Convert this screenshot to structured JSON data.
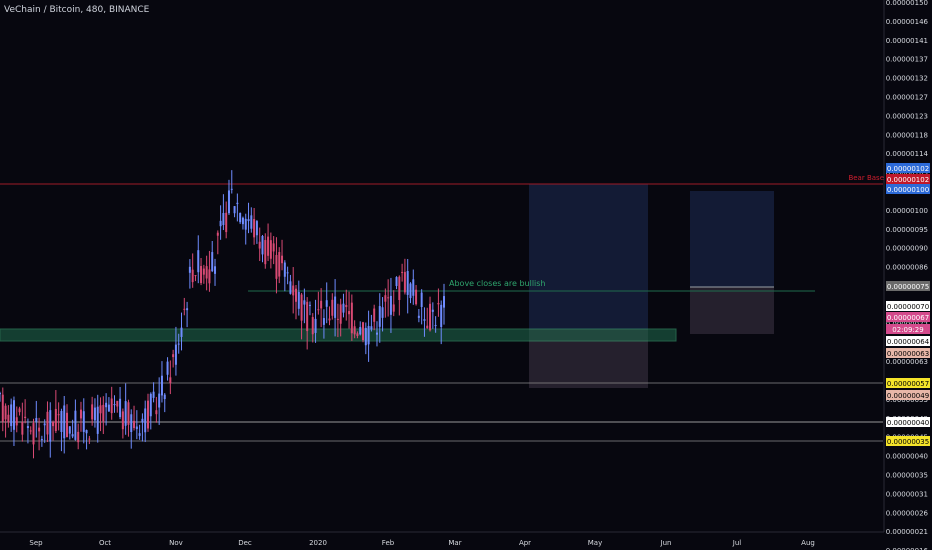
{
  "header": {
    "title": "VeChain / Bitcoin, 480, BINANCE"
  },
  "colors": {
    "background": "#07070f",
    "up": "#6f8cff",
    "down": "#d94a74",
    "red_line": "#9c1b27",
    "green_zone": "#1f6b4d",
    "axis_text": "#d7dae0"
  },
  "chart_data": {
    "type": "candlestick",
    "title": "VeChain / Bitcoin, 480, BINANCE",
    "x_ticks": [
      "Sep",
      "Oct",
      "Nov",
      "Dec",
      "2020",
      "Feb",
      "Mar",
      "Apr",
      "May",
      "Jun",
      "Jul",
      "Aug"
    ],
    "y_ticks": [
      "0.00000016",
      "0.00000021",
      "0.00000026",
      "0.00000031",
      "0.00000035",
      "0.00000040",
      "0.00000045",
      "0.00000049",
      "0.00000053",
      "0.00000058",
      "0.00000063",
      "0.00000067",
      "0.00000072",
      "0.00000076",
      "0.00000081",
      "0.00000086",
      "0.00000090",
      "0.00000095",
      "0.00000100",
      "0.00000104",
      "0.00000109",
      "0.00000114",
      "0.00000118",
      "0.00000123",
      "0.00000127",
      "0.00000132",
      "0.00000137",
      "0.00000141",
      "0.00000146",
      "0.00000150"
    ],
    "ylim": [
      1.4e-07,
      1.51e-06
    ],
    "price_path": [
      [
        "Sep",
        4.6e-07
      ],
      [
        "Sep",
        4.4e-07
      ],
      [
        "Sep",
        3.9e-07
      ],
      [
        "Sep",
        4.3e-07
      ],
      [
        "Oct",
        4.1e-07
      ],
      [
        "Oct",
        4.3e-07
      ],
      [
        "Oct",
        4.5e-07
      ],
      [
        "Oct",
        4.2e-07
      ],
      [
        "Nov",
        4.6e-07
      ],
      [
        "Nov",
        5.8e-07
      ],
      [
        "Nov",
        8.3e-07
      ],
      [
        "Nov",
        8.2e-07
      ],
      [
        "Dec",
        1.01e-06
      ],
      [
        "Dec",
        9.4e-07
      ],
      [
        "Dec",
        8.5e-07
      ],
      [
        "Dec",
        8e-07
      ],
      [
        "2020",
        6.8e-07
      ],
      [
        "2020",
        7.2e-07
      ],
      [
        "2020",
        7e-07
      ],
      [
        "Feb",
        6.6e-07
      ],
      [
        "Feb",
        7.2e-07
      ],
      [
        "Feb",
        8e-07
      ],
      [
        "Feb",
        7e-07
      ],
      [
        "Feb",
        7.1e-07
      ]
    ],
    "levels": [
      {
        "name": "Bear Base",
        "price": 1.013e-06,
        "color": "#9c1b27"
      },
      {
        "name": "Above closes are bullish",
        "price": 7.5e-07,
        "color": "#1f6b4d"
      }
    ],
    "annotations": [
      {
        "text": "Bear Base",
        "color": "#d01e2e"
      },
      {
        "text": "Above closes are bullish",
        "color": "#2fa56d"
      }
    ],
    "price_labels": [
      {
        "text": "0.00000102",
        "bg": "#2c6ad8",
        "fg": "#ffffff"
      },
      {
        "text": "0.00000102",
        "bg": "#c0182a",
        "fg": "#ffffff"
      },
      {
        "text": "0.00000100",
        "bg": "#2c6ad8",
        "fg": "#ffffff"
      },
      {
        "text": "0.00000075",
        "bg": "#6b6b6b",
        "fg": "#ffffff"
      },
      {
        "text": "0.00000070",
        "bg": "#ffffff",
        "fg": "#000000"
      },
      {
        "text": "0.00000067",
        "bg": "#d44a8c",
        "fg": "#ffffff"
      },
      {
        "text": "02:09:29",
        "bg": "#d44a8c",
        "fg": "#ffffff"
      },
      {
        "text": "0.00000064",
        "bg": "#ffffff",
        "fg": "#000000"
      },
      {
        "text": "0.00000063",
        "bg": "#e8b7a8",
        "fg": "#000000"
      },
      {
        "text": "0.00000057",
        "bg": "#f5e42a",
        "fg": "#000000"
      },
      {
        "text": "0.00000049",
        "bg": "#e8b7a8",
        "fg": "#000000"
      },
      {
        "text": "0.00000040",
        "bg": "#ffffff",
        "fg": "#000000"
      },
      {
        "text": "0.00000035",
        "bg": "#f5e42a",
        "fg": "#000000"
      }
    ]
  }
}
